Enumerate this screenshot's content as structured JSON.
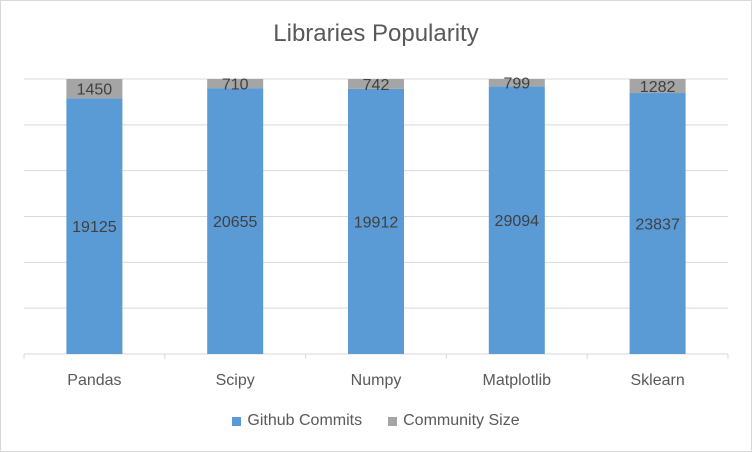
{
  "chart_data": {
    "type": "bar",
    "stacked": true,
    "normalized": true,
    "title": "Libraries Popularity",
    "categories": [
      "Pandas",
      "Scipy",
      "Numpy",
      "Matplotlib",
      "Sklearn"
    ],
    "series": [
      {
        "name": "Github Commits",
        "values": [
          19125,
          20655,
          19912,
          29094,
          23837
        ],
        "color": "#5b9bd5"
      },
      {
        "name": "Community Size",
        "values": [
          1450,
          710,
          742,
          799,
          1282
        ],
        "color": "#a5a5a5"
      }
    ],
    "grid": true,
    "legend_position": "bottom"
  }
}
